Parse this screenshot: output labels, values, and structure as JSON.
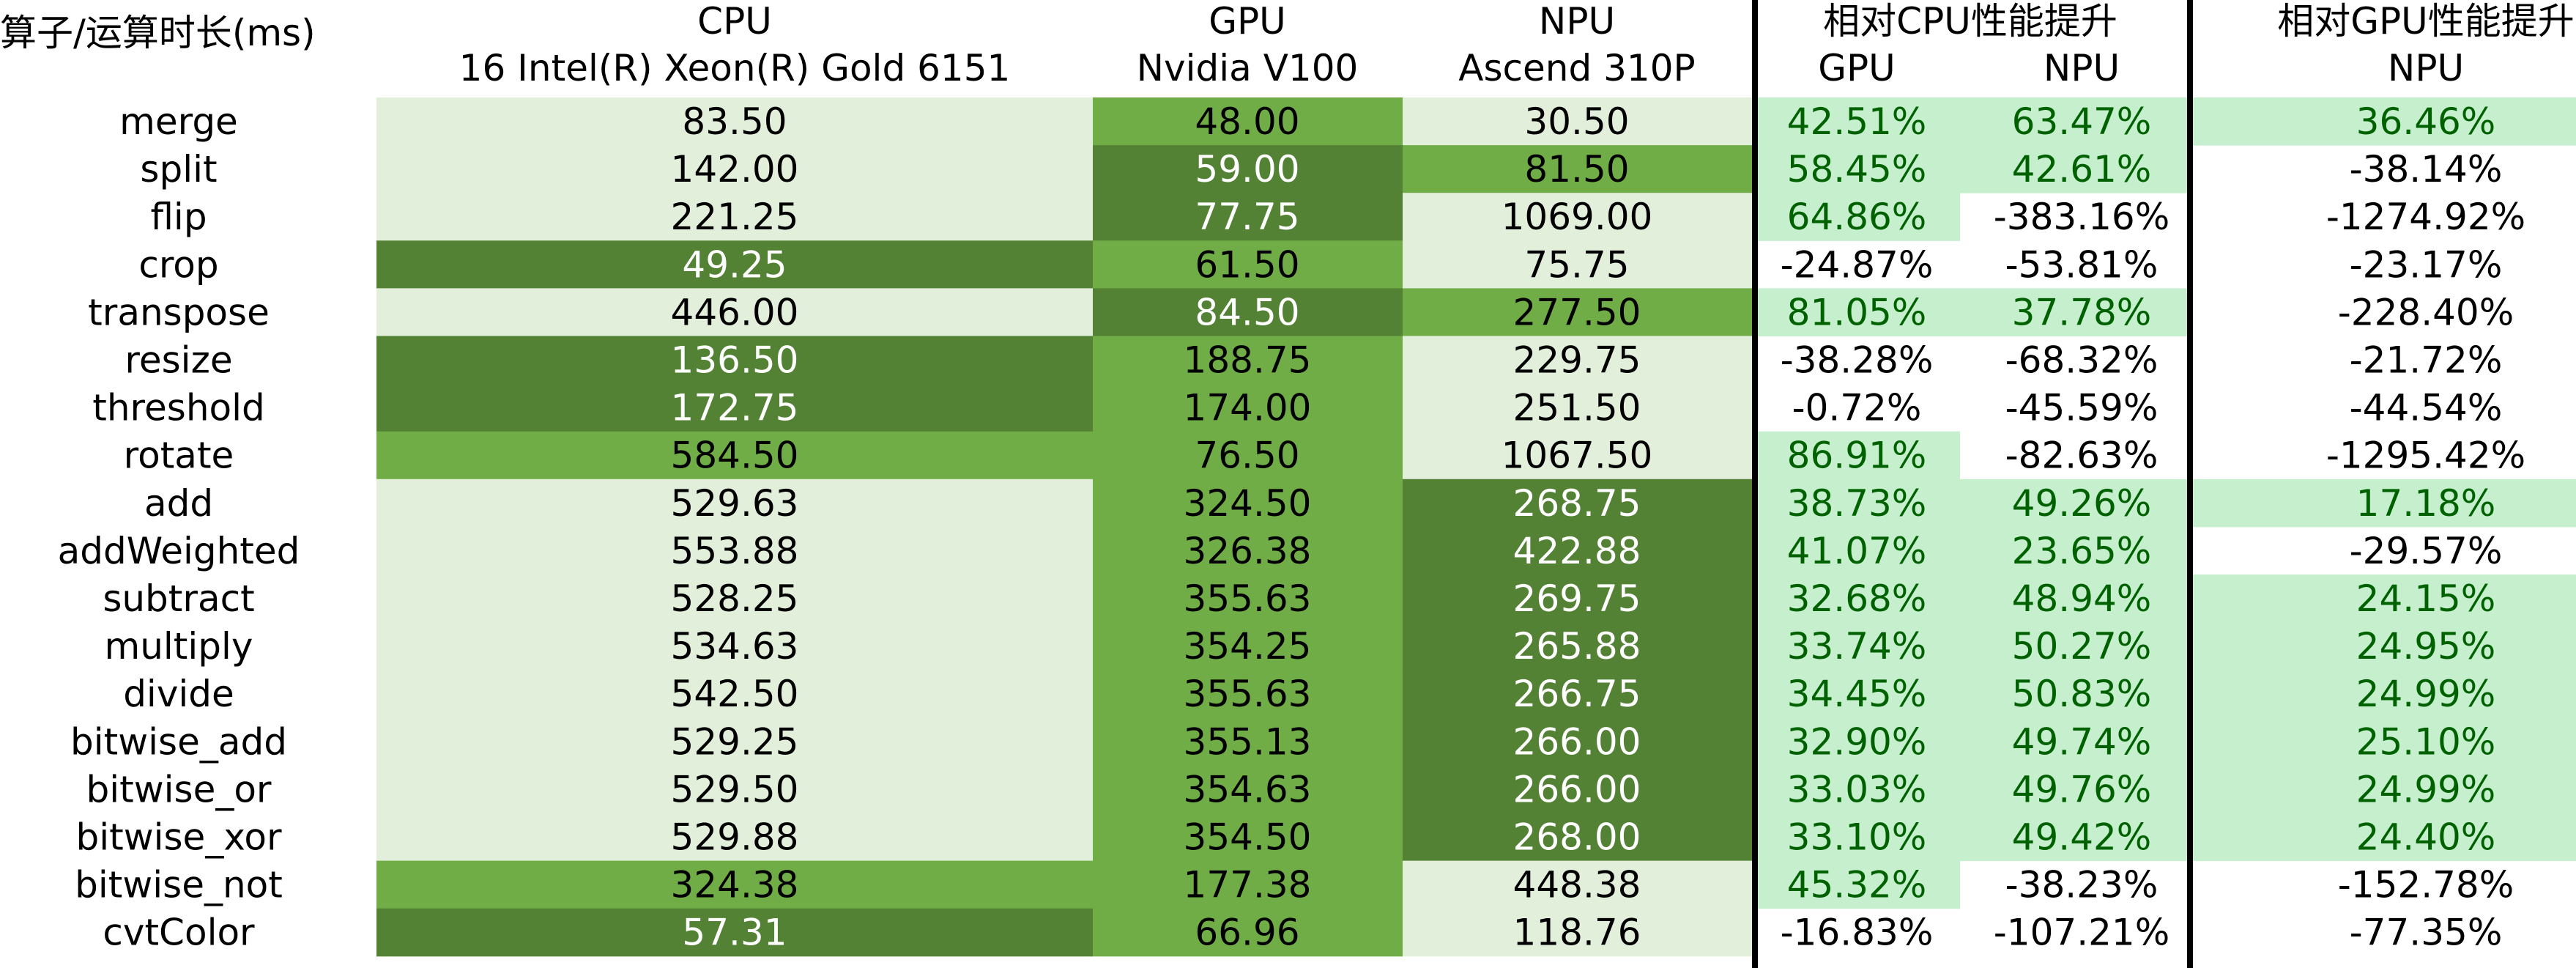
{
  "chart_data": {
    "type": "table",
    "headers": {
      "op": "算子/运算时长(ms)",
      "cpu": [
        "CPU",
        "16 Intel(R) Xeon(R) Gold 6151"
      ],
      "gpu": [
        "GPU",
        "Nvidia V100"
      ],
      "npu": [
        "NPU",
        "Ascend 310P"
      ],
      "rel_cpu": [
        "相对CPU性能提升",
        "GPU",
        "NPU"
      ],
      "rel_gpu": [
        "相对GPU性能提升",
        "NPU"
      ]
    },
    "rows": [
      {
        "op": "merge",
        "cpu": "83.50",
        "gpu": "48.00",
        "npu": "30.50",
        "cpu_gpu": "42.51%",
        "cpu_npu": "63.47%",
        "gpu_npu": "36.46%"
      },
      {
        "op": "split",
        "cpu": "142.00",
        "gpu": "59.00",
        "npu": "81.50",
        "cpu_gpu": "58.45%",
        "cpu_npu": "42.61%",
        "gpu_npu": "-38.14%"
      },
      {
        "op": "flip",
        "cpu": "221.25",
        "gpu": "77.75",
        "npu": "1069.00",
        "cpu_gpu": "64.86%",
        "cpu_npu": "-383.16%",
        "gpu_npu": "-1274.92%"
      },
      {
        "op": "crop",
        "cpu": "49.25",
        "gpu": "61.50",
        "npu": "75.75",
        "cpu_gpu": "-24.87%",
        "cpu_npu": "-53.81%",
        "gpu_npu": "-23.17%"
      },
      {
        "op": "transpose",
        "cpu": "446.00",
        "gpu": "84.50",
        "npu": "277.50",
        "cpu_gpu": "81.05%",
        "cpu_npu": "37.78%",
        "gpu_npu": "-228.40%"
      },
      {
        "op": "resize",
        "cpu": "136.50",
        "gpu": "188.75",
        "npu": "229.75",
        "cpu_gpu": "-38.28%",
        "cpu_npu": "-68.32%",
        "gpu_npu": "-21.72%"
      },
      {
        "op": "threshold",
        "cpu": "172.75",
        "gpu": "174.00",
        "npu": "251.50",
        "cpu_gpu": "-0.72%",
        "cpu_npu": "-45.59%",
        "gpu_npu": "-44.54%"
      },
      {
        "op": "rotate",
        "cpu": "584.50",
        "gpu": "76.50",
        "npu": "1067.50",
        "cpu_gpu": "86.91%",
        "cpu_npu": "-82.63%",
        "gpu_npu": "-1295.42%"
      },
      {
        "op": "add",
        "cpu": "529.63",
        "gpu": "324.50",
        "npu": "268.75",
        "cpu_gpu": "38.73%",
        "cpu_npu": "49.26%",
        "gpu_npu": "17.18%"
      },
      {
        "op": "addWeighted",
        "cpu": "553.88",
        "gpu": "326.38",
        "npu": "422.88",
        "cpu_gpu": "41.07%",
        "cpu_npu": "23.65%",
        "gpu_npu": "-29.57%"
      },
      {
        "op": "subtract",
        "cpu": "528.25",
        "gpu": "355.63",
        "npu": "269.75",
        "cpu_gpu": "32.68%",
        "cpu_npu": "48.94%",
        "gpu_npu": "24.15%"
      },
      {
        "op": "multiply",
        "cpu": "534.63",
        "gpu": "354.25",
        "npu": "265.88",
        "cpu_gpu": "33.74%",
        "cpu_npu": "50.27%",
        "gpu_npu": "24.95%"
      },
      {
        "op": "divide",
        "cpu": "542.50",
        "gpu": "355.63",
        "npu": "266.75",
        "cpu_gpu": "34.45%",
        "cpu_npu": "50.83%",
        "gpu_npu": "24.99%"
      },
      {
        "op": "bitwise_add",
        "cpu": "529.25",
        "gpu": "355.13",
        "npu": "266.00",
        "cpu_gpu": "32.90%",
        "cpu_npu": "49.74%",
        "gpu_npu": "25.10%"
      },
      {
        "op": "bitwise_or",
        "cpu": "529.50",
        "gpu": "354.63",
        "npu": "266.00",
        "cpu_gpu": "33.03%",
        "cpu_npu": "49.76%",
        "gpu_npu": "24.99%"
      },
      {
        "op": "bitwise_xor",
        "cpu": "529.88",
        "gpu": "354.50",
        "npu": "268.00",
        "cpu_gpu": "33.10%",
        "cpu_npu": "49.42%",
        "gpu_npu": "24.40%"
      },
      {
        "op": "bitwise_not",
        "cpu": "324.38",
        "gpu": "177.38",
        "npu": "448.38",
        "cpu_gpu": "45.32%",
        "cpu_npu": "-38.23%",
        "gpu_npu": "-152.78%"
      },
      {
        "op": "cvtColor",
        "cpu": "57.31",
        "gpu": "66.96",
        "npu": "118.76",
        "cpu_gpu": "-16.83%",
        "cpu_npu": "-107.21%",
        "gpu_npu": "-77.35%"
      }
    ],
    "shading": {
      "time_levels": {
        "cpu": [
          0,
          0,
          0,
          2,
          0,
          2,
          2,
          1,
          0,
          0,
          0,
          0,
          0,
          0,
          0,
          0,
          1,
          2
        ],
        "gpu": [
          1,
          2,
          2,
          1,
          2,
          1,
          1,
          1,
          1,
          1,
          1,
          1,
          1,
          1,
          1,
          1,
          1,
          1
        ],
        "npu": [
          0,
          1,
          0,
          0,
          1,
          0,
          0,
          0,
          2,
          2,
          2,
          2,
          2,
          2,
          2,
          2,
          0,
          0
        ]
      },
      "positive_highlight": true,
      "colors": {
        "light": "#e2efda",
        "medium": "#70ad47",
        "dark": "#548235",
        "positive_bg": "#c6efce",
        "positive_text": "#006100"
      }
    }
  }
}
